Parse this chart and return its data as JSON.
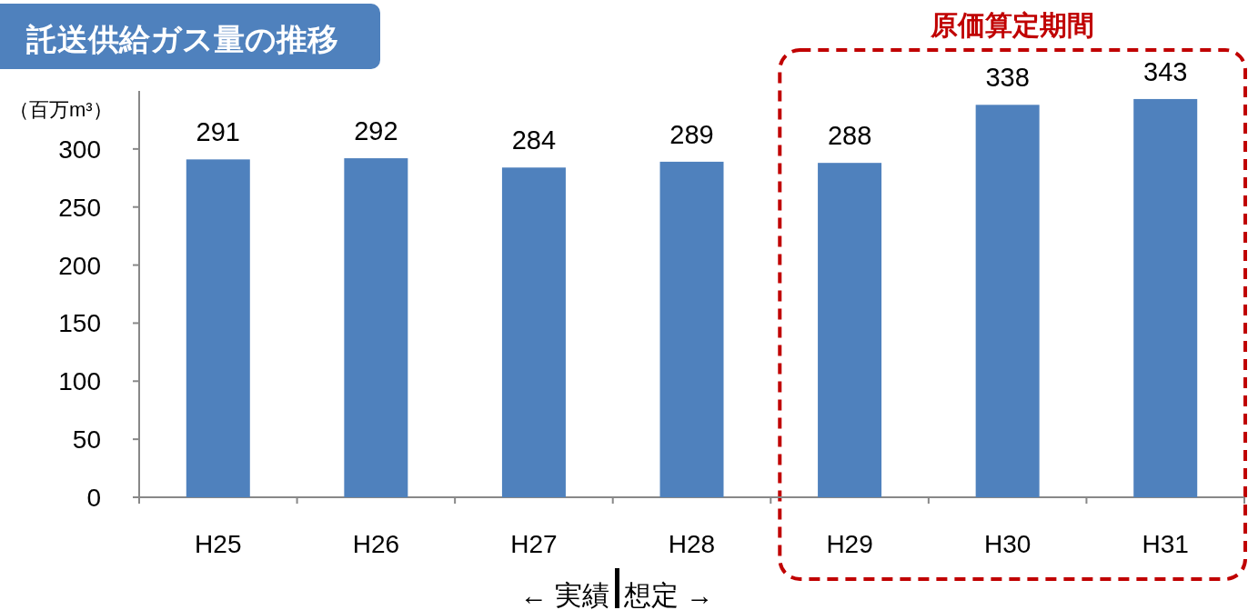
{
  "chart_data": {
    "type": "bar",
    "title": "託送供給ガス量の推移",
    "ylabel": "（百万m³）",
    "categories": [
      "H25",
      "H26",
      "H27",
      "H28",
      "H29",
      "H30",
      "H31"
    ],
    "values": [
      291,
      292,
      284,
      289,
      288,
      338,
      343
    ],
    "color": "#4f81bd",
    "ylim": [
      0,
      350
    ],
    "yticks": [
      0,
      50,
      100,
      150,
      200,
      250,
      300
    ],
    "data_labels": true,
    "annotations": [
      "原価算定期間",
      "← 実績",
      "想定 →"
    ]
  }
}
